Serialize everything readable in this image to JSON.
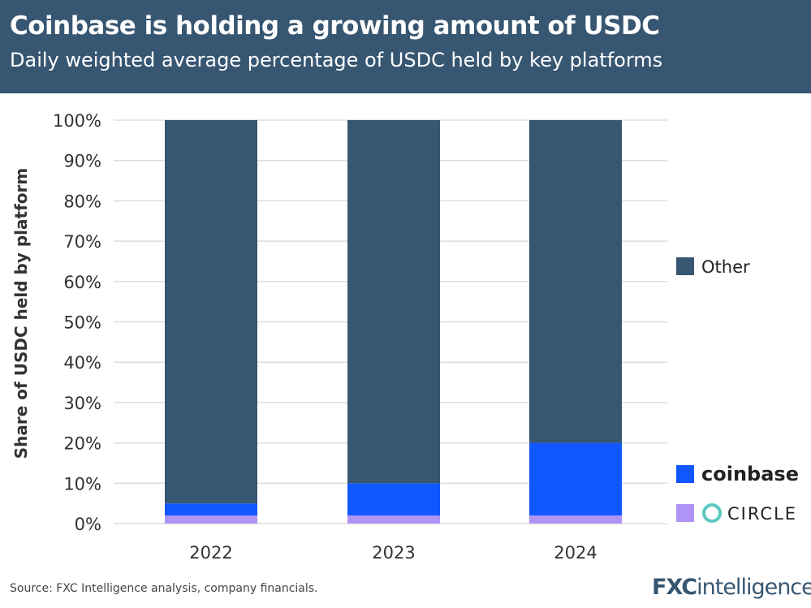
{
  "header": {
    "title": "Coinbase is holding a growing amount of USDC",
    "subtitle": "Daily weighted average percentage of USDC held by key platforms"
  },
  "chart_data": {
    "type": "bar",
    "stacked": true,
    "categories": [
      "2022",
      "2023",
      "2024"
    ],
    "series": [
      {
        "name": "CIRCLE",
        "color": "#b094f5",
        "values": [
          2,
          2,
          2
        ]
      },
      {
        "name": "coinbase",
        "color": "#1157ff",
        "values": [
          3,
          8,
          18
        ]
      },
      {
        "name": "Other",
        "color": "#375672",
        "values": [
          95,
          90,
          80
        ]
      }
    ],
    "ylabel": "Share of USDC held by platform",
    "ylim": [
      0,
      100
    ],
    "yticks": [
      "0%",
      "10%",
      "20%",
      "30%",
      "40%",
      "50%",
      "60%",
      "70%",
      "80%",
      "90%",
      "100%"
    ],
    "grid": true,
    "legend_position": "right"
  },
  "footer": {
    "source": "Source: FXC Intelligence analysis, company financials.",
    "logo": "FXCintelligence"
  }
}
